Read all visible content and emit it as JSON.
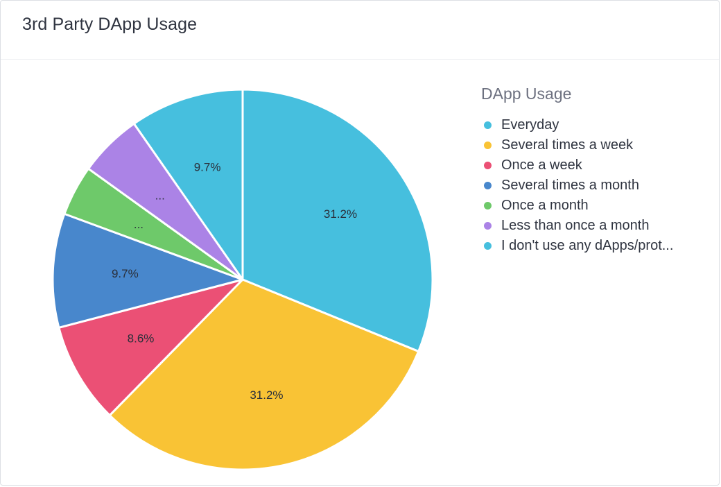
{
  "card": {
    "title": "3rd Party DApp Usage"
  },
  "chart_data": {
    "type": "pie",
    "legend_title": "DApp Usage",
    "legend_position": "right",
    "slices": [
      {
        "label": "Everyday",
        "value": 31.2,
        "display": "31.2%",
        "color": "#46bfde"
      },
      {
        "label": "Several times a week",
        "value": 31.2,
        "display": "31.2%",
        "color": "#f9c335"
      },
      {
        "label": "Once a week",
        "value": 8.6,
        "display": "8.6%",
        "color": "#eb5075"
      },
      {
        "label": "Several times a month",
        "value": 9.7,
        "display": "9.7%",
        "color": "#4887cc"
      },
      {
        "label": "Once a month",
        "value": 4.3,
        "display": "...",
        "color": "#6ec96a"
      },
      {
        "label": "Less than once a month",
        "value": 5.4,
        "display": "...",
        "color": "#ab83e6"
      },
      {
        "label": "I don't use any dApps/prot...",
        "value": 9.7,
        "display": "9.7%",
        "color": "#46bfde"
      }
    ]
  }
}
